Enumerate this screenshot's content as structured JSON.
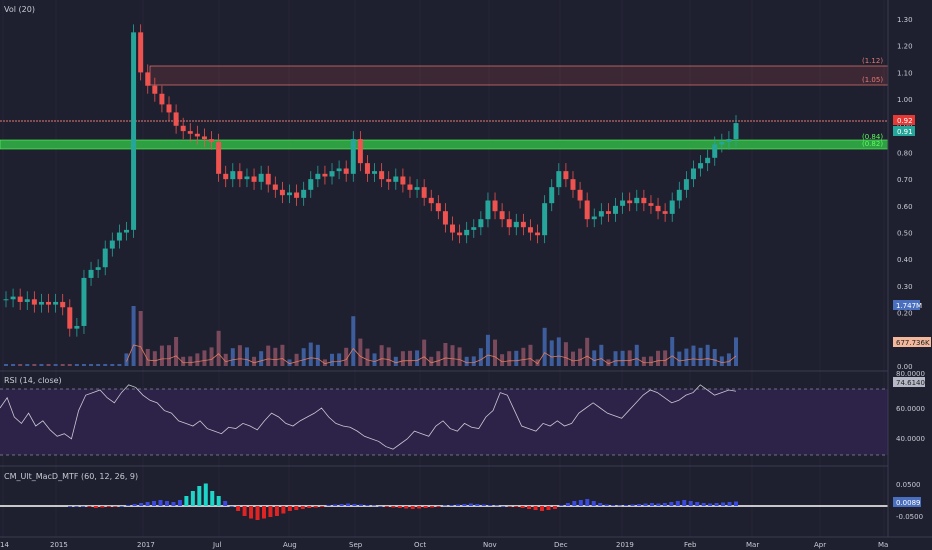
{
  "title": "Vol (20)",
  "colors": {
    "background": "#1e1f2f",
    "up": "#26a69a",
    "down": "#ef5350",
    "grid": "#2a2c3e",
    "pivot_res": "#e67a73",
    "pivot_sup": "#2ecc40",
    "rsi_line": "#c9c9d3",
    "rsi_band": "#2d2348",
    "macd_blue": "#3b4ad8",
    "macd_red": "#e02424",
    "macd_aqua": "#1dd6c8"
  },
  "price_axis": {
    "ticks": [
      "1.30",
      "1.20",
      "1.10",
      "1.00",
      "0.90",
      "0.80",
      "0.70",
      "0.60",
      "0.50",
      "0.40",
      "0.30",
      "0.20",
      "0.10",
      "0.00"
    ]
  },
  "date_axis": {
    "labels": [
      "14",
      "2015",
      "2017",
      "Jul",
      "Aug",
      "Sep",
      "Oct",
      "Nov",
      "Dec",
      "2019",
      "Feb",
      "Mar",
      "Apr",
      "Ma"
    ]
  },
  "levels": {
    "zone_label_top": "(1.12)",
    "zone_label_bottom": "(1.05)",
    "support_top": "(0.84)",
    "support_bottom": "(0.82)",
    "last_price": "0.92",
    "last_close": "0.91",
    "vol_value": "1.747M",
    "vol_ma_value": "677.736K"
  },
  "rsi": {
    "title": "RSI (14, close)",
    "ticks": [
      "80.0000",
      "60.0000",
      "40.0000"
    ],
    "value": "74.6140"
  },
  "macd": {
    "title": "CM_Ult_MacD_MTF (60, 12, 26, 9)",
    "ticks": [
      "0.0500",
      "-0.0500"
    ],
    "value": "0.0089"
  },
  "chart_data": {
    "type": "candlestick",
    "price_ylim": [
      0,
      1.3
    ],
    "candles_close": [
      0.25,
      0.26,
      0.24,
      0.25,
      0.23,
      0.24,
      0.23,
      0.24,
      0.22,
      0.14,
      0.15,
      0.33,
      0.36,
      0.37,
      0.44,
      0.47,
      0.5,
      0.51,
      1.25,
      1.1,
      1.05,
      1.02,
      0.98,
      0.95,
      0.9,
      0.88,
      0.87,
      0.86,
      0.85,
      0.84,
      0.72,
      0.7,
      0.73,
      0.7,
      0.71,
      0.69,
      0.72,
      0.68,
      0.66,
      0.64,
      0.65,
      0.63,
      0.66,
      0.7,
      0.72,
      0.71,
      0.73,
      0.74,
      0.72,
      0.85,
      0.76,
      0.72,
      0.73,
      0.7,
      0.69,
      0.71,
      0.68,
      0.66,
      0.67,
      0.63,
      0.61,
      0.58,
      0.53,
      0.5,
      0.49,
      0.51,
      0.52,
      0.55,
      0.62,
      0.58,
      0.55,
      0.52,
      0.54,
      0.52,
      0.5,
      0.49,
      0.61,
      0.67,
      0.73,
      0.7,
      0.66,
      0.62,
      0.55,
      0.56,
      0.58,
      0.57,
      0.6,
      0.62,
      0.61,
      0.63,
      0.61,
      0.6,
      0.58,
      0.57,
      0.62,
      0.66,
      0.7,
      0.74,
      0.76,
      0.78,
      0.83,
      0.84,
      0.85,
      0.91
    ],
    "volume_max_label": "1.747M",
    "rsi_ylim": [
      20,
      90
    ],
    "rsi_levels": [
      70,
      30
    ],
    "rsi_values": [
      62,
      70,
      55,
      50,
      58,
      48,
      52,
      45,
      40,
      42,
      38,
      60,
      72,
      74,
      76,
      70,
      66,
      74,
      80,
      78,
      72,
      68,
      66,
      60,
      58,
      52,
      50,
      48,
      52,
      46,
      44,
      42,
      47,
      46,
      50,
      48,
      45,
      52,
      58,
      55,
      50,
      48,
      52,
      55,
      58,
      62,
      55,
      50,
      48,
      47,
      44,
      40,
      38,
      36,
      32,
      30,
      34,
      38,
      44,
      42,
      40,
      48,
      52,
      46,
      44,
      50,
      47,
      46,
      55,
      60,
      74,
      72,
      60,
      48,
      46,
      44,
      50,
      48,
      52,
      48,
      50,
      58,
      62,
      66,
      62,
      58,
      56,
      54,
      60,
      66,
      72,
      76,
      74,
      70,
      66,
      68,
      72,
      74,
      80,
      76,
      72,
      74,
      76,
      75
    ],
    "macd_ylim": [
      -0.06,
      0.06
    ],
    "macd_values": [
      0,
      0,
      0,
      -0.002,
      -0.004,
      -0.003,
      -0.002,
      -0.001,
      0,
      0.002,
      0.004,
      0.006,
      0.008,
      0.01,
      0.012,
      0.01,
      0.008,
      0.012,
      0.02,
      0.03,
      0.04,
      0.045,
      0.03,
      0.02,
      0.01,
      0,
      -0.01,
      -0.02,
      -0.025,
      -0.028,
      -0.025,
      -0.022,
      -0.02,
      -0.015,
      -0.01,
      -0.008,
      -0.006,
      -0.004,
      -0.003,
      -0.002,
      0.002,
      0.003,
      0.004,
      0.005,
      0.004,
      0.003,
      0.002,
      0.001,
      0,
      -0.002,
      -0.003,
      -0.004,
      -0.005,
      -0.006,
      -0.005,
      -0.004,
      -0.003,
      -0.002,
      0.001,
      0.002,
      0.003,
      0.004,
      0.005,
      0.004,
      0.003,
      0.002,
      0.001,
      0,
      -0.001,
      -0.002,
      -0.004,
      -0.006,
      -0.008,
      -0.01,
      -0.008,
      -0.006,
      0.002,
      0.006,
      0.01,
      0.012,
      0.014,
      0.01,
      0.006,
      0.003,
      0.002,
      0.001,
      0.002,
      0.003,
      0.004,
      0.005,
      0.006,
      0.005,
      0.006,
      0.008,
      0.01,
      0.012,
      0.01,
      0.008,
      0.006,
      0.005,
      0.006,
      0.007,
      0.008,
      0.009
    ]
  }
}
